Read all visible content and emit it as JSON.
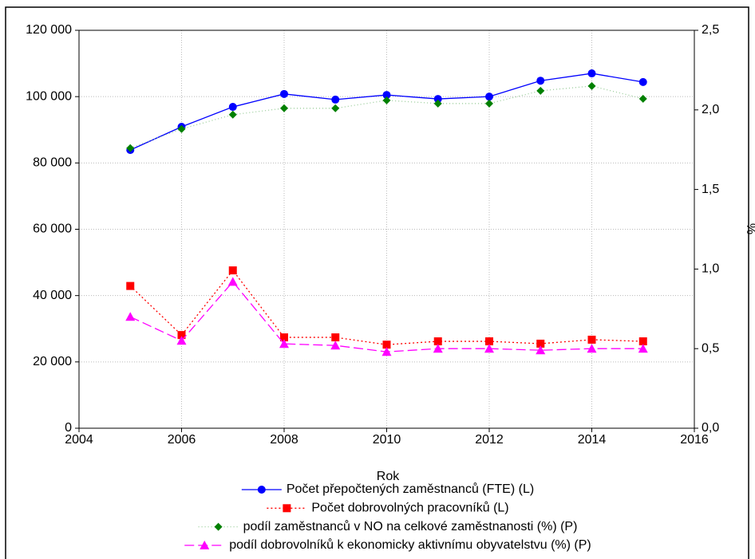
{
  "chart_data": {
    "type": "line",
    "x_label": "Rok",
    "y2_label": "%",
    "x": [
      2005,
      2006,
      2007,
      2008,
      2009,
      2010,
      2011,
      2012,
      2013,
      2014,
      2015
    ],
    "xlim": [
      2004,
      2016
    ],
    "xticks": [
      2004,
      2006,
      2008,
      2010,
      2012,
      2014,
      2016
    ],
    "ylim": [
      0,
      120000
    ],
    "yticks": [
      0,
      {
        "value": 20000,
        "label": "20 000"
      },
      {
        "value": 40000,
        "label": "40 000"
      },
      {
        "value": 60000,
        "label": "60 000"
      },
      {
        "value": 80000,
        "label": "80 000"
      },
      {
        "value": 100000,
        "label": "100 000"
      },
      {
        "value": 120000,
        "label": "120 000"
      }
    ],
    "y2lim": [
      0,
      2.5
    ],
    "y2ticks": [
      {
        "value": 0,
        "label": "0,0"
      },
      {
        "value": 0.5,
        "label": "0,5"
      },
      {
        "value": 1,
        "label": "1,0"
      },
      {
        "value": 1.5,
        "label": "1,5"
      },
      {
        "value": 2,
        "label": "2,0"
      },
      {
        "value": 2.5,
        "label": "2,5"
      }
    ],
    "grid": true,
    "legend": "bottom",
    "series": [
      {
        "name": "Počet přepočtených zaměstnanců (FTE) (L)",
        "color": "#0000ff",
        "marker": "circle",
        "line": "solid",
        "values": [
          83900,
          90900,
          96900,
          100800,
          99100,
          100500,
          99300,
          100000,
          104800,
          107000,
          104400
        ]
      },
      {
        "name": "Počet dobrovolných pracovníků (L)",
        "color": "#ff0000",
        "marker": "square",
        "line": "dotted",
        "values": [
          42900,
          28100,
          47600,
          27400,
          27400,
          25200,
          26200,
          26200,
          25500,
          26700,
          26200
        ]
      },
      {
        "name": "podíl zaměstnanců v NO na celkové zaměstnanosti (%)  (P)",
        "color": "#008000",
        "marker": "diamond",
        "line": "dotted-light",
        "axis": "y2",
        "values": [
          1.76,
          1.88,
          1.97,
          2.01,
          2.01,
          2.06,
          2.04,
          2.04,
          2.12,
          2.15,
          2.07
        ]
      },
      {
        "name": "podíl dobrovolníků k ekonomicky aktivnímu obyvatelstvu (%) (P)",
        "color": "#ff00ff",
        "marker": "triangle",
        "line": "dashed",
        "axis": "y2",
        "values": [
          0.7,
          0.55,
          0.92,
          0.53,
          0.52,
          0.48,
          0.5,
          0.5,
          0.49,
          0.5,
          0.5
        ]
      }
    ]
  }
}
